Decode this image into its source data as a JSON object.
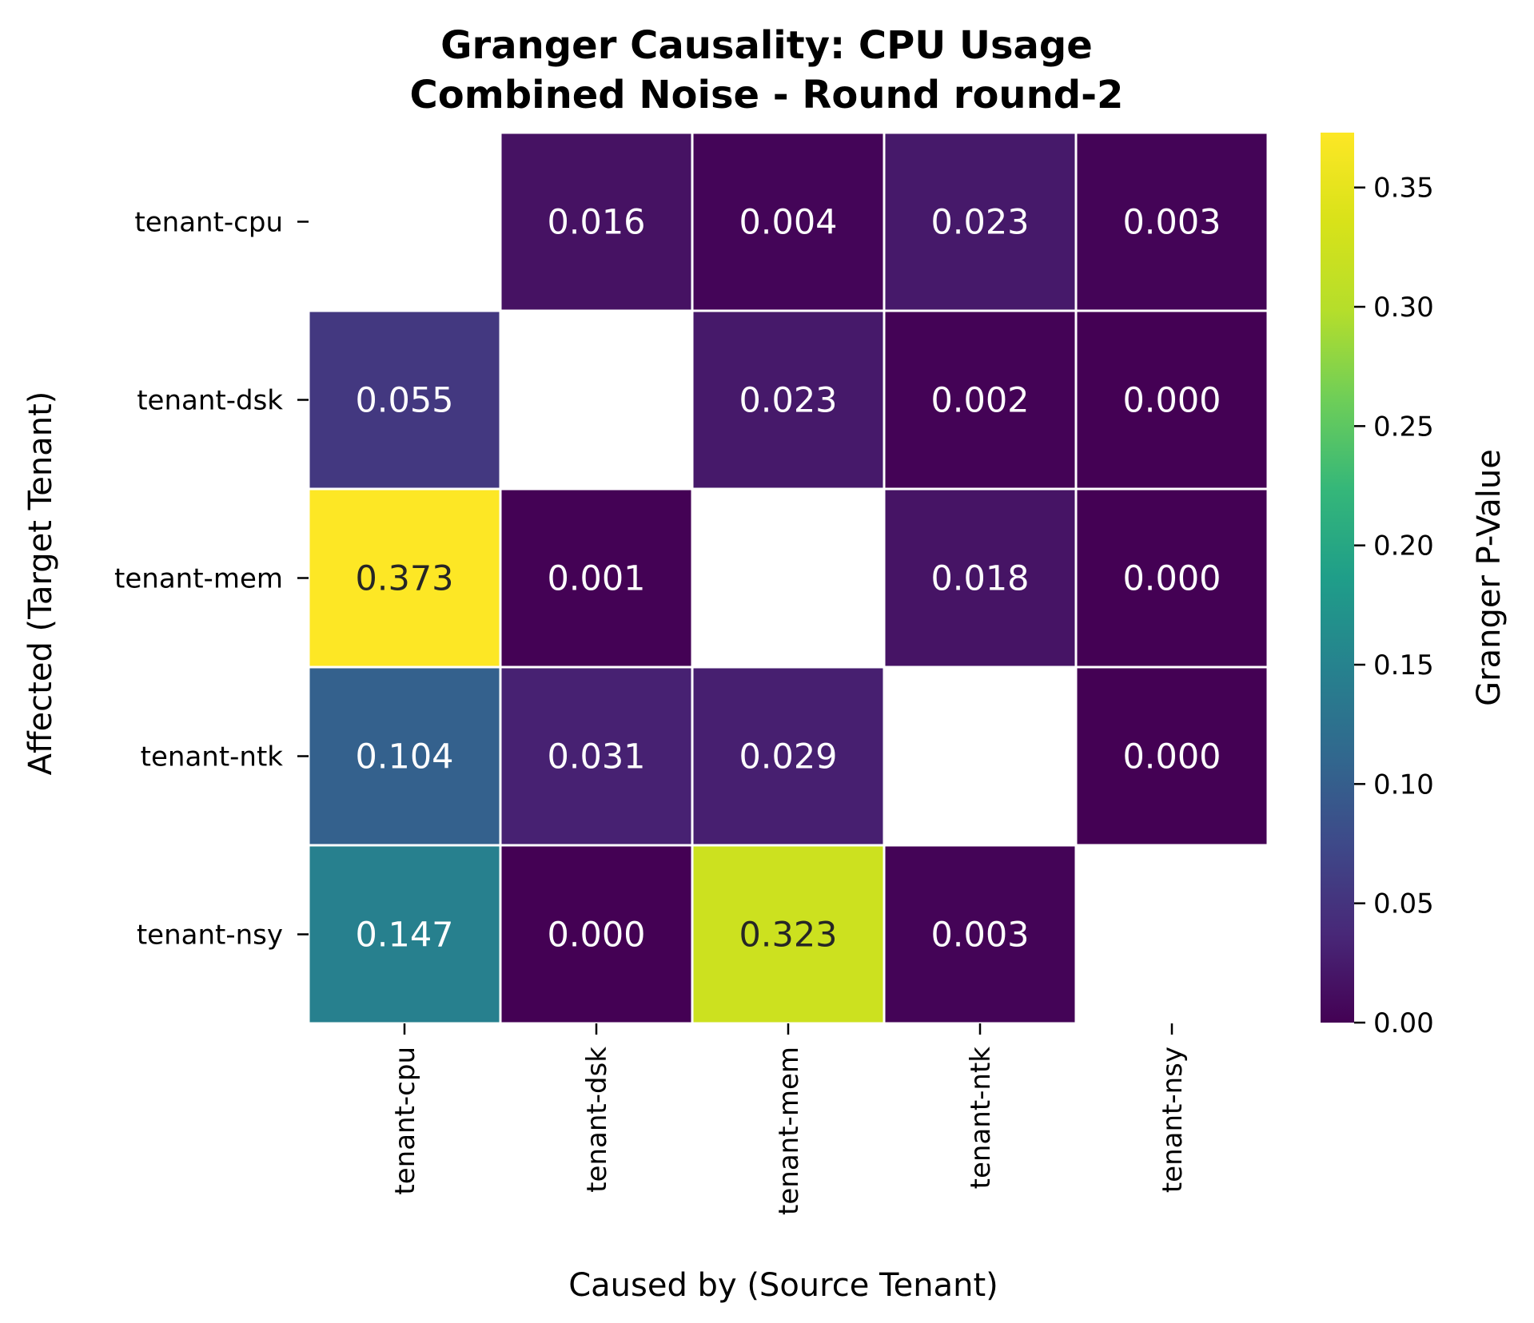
{
  "chart_data": {
    "type": "heatmap",
    "title_line1": "Granger Causality: CPU Usage",
    "title_line2": "Combined Noise - Round round-2",
    "xlabel": "Caused by (Source Tenant)",
    "ylabel": "Affected (Target Tenant)",
    "colorbar_label": "Granger P-Value",
    "colormap": "viridis",
    "x_categories": [
      "tenant-cpu",
      "tenant-dsk",
      "tenant-mem",
      "tenant-ntk",
      "tenant-nsy"
    ],
    "y_categories": [
      "tenant-cpu",
      "tenant-dsk",
      "tenant-mem",
      "tenant-ntk",
      "tenant-nsy"
    ],
    "values": [
      [
        null,
        0.016,
        0.004,
        0.023,
        0.003
      ],
      [
        0.055,
        null,
        0.023,
        0.002,
        0.0
      ],
      [
        0.373,
        0.001,
        null,
        0.018,
        0.0
      ],
      [
        0.104,
        0.031,
        0.029,
        null,
        0.0
      ],
      [
        0.147,
        0.0,
        0.323,
        0.003,
        null
      ]
    ],
    "value_labels": [
      [
        "",
        "0.016",
        "0.004",
        "0.023",
        "0.003"
      ],
      [
        "0.055",
        "",
        "0.023",
        "0.002",
        "0.000"
      ],
      [
        "0.373",
        "0.001",
        "",
        "0.018",
        "0.000"
      ],
      [
        "0.104",
        "0.031",
        "0.029",
        "",
        "0.000"
      ],
      [
        "0.147",
        "0.000",
        "0.323",
        "0.003",
        ""
      ]
    ],
    "colorbar_range": [
      0,
      0.373
    ],
    "colorbar_ticks": [
      "0.00",
      "0.05",
      "0.10",
      "0.15",
      "0.20",
      "0.25",
      "0.30",
      "0.35"
    ]
  }
}
